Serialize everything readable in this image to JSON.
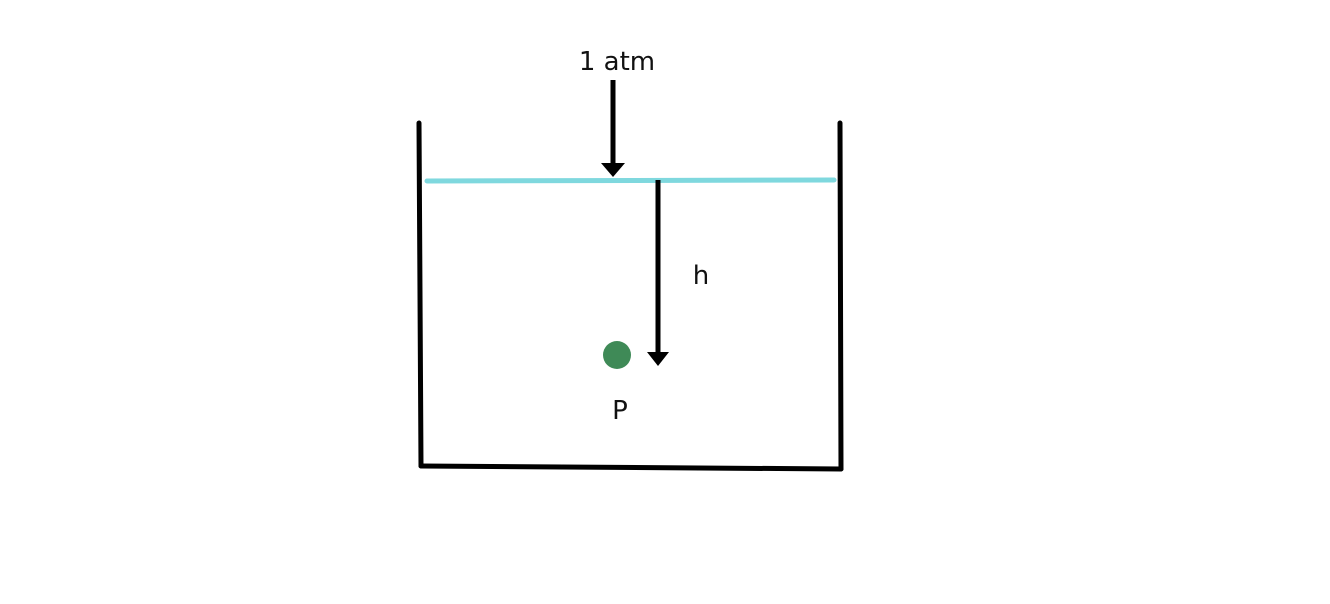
{
  "labels": {
    "pressure": "1 atm",
    "depth": "h",
    "point": "P"
  },
  "colors": {
    "water_surface": "#7fd8de",
    "point_marker": "#3f8a57",
    "ink": "#000000"
  }
}
